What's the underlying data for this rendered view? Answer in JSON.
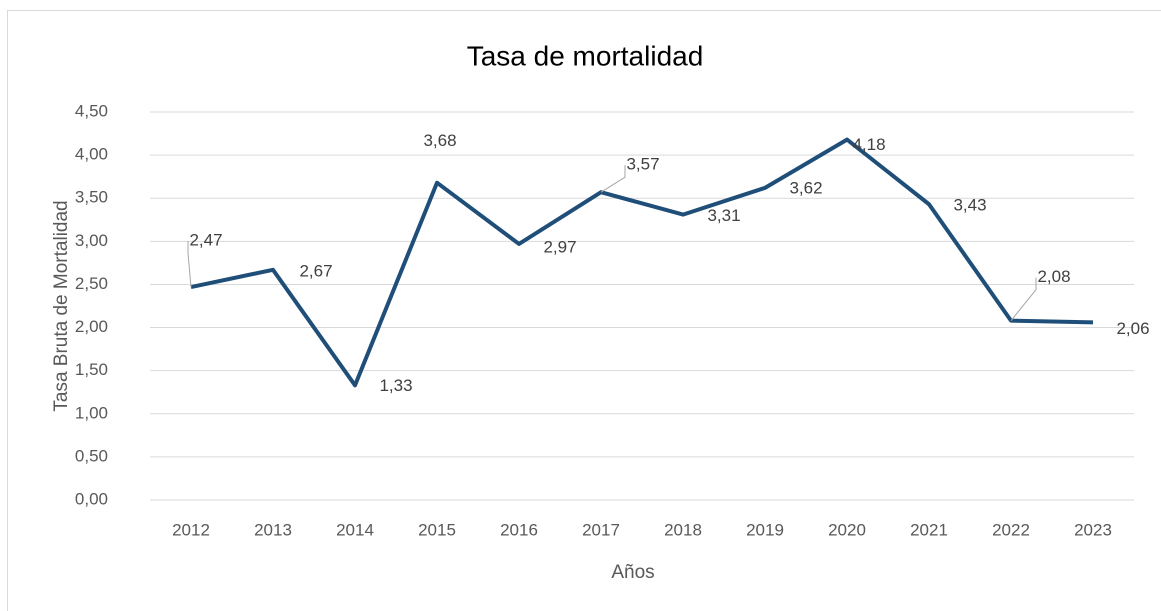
{
  "chart_data": {
    "type": "line",
    "title": "Tasa de mortalidad",
    "x_label": "Años",
    "y_label": "Tasa Bruta de Mortalidad",
    "categories": [
      "2012",
      "2013",
      "2014",
      "2015",
      "2016",
      "2017",
      "2018",
      "2019",
      "2020",
      "2021",
      "2022",
      "2023"
    ],
    "series": [
      {
        "name": "Tasa Bruta de Mortalidad",
        "color": "#1f4e79",
        "values": [
          2.47,
          2.67,
          1.33,
          3.68,
          2.97,
          3.57,
          3.31,
          3.62,
          4.18,
          3.43,
          2.08,
          2.06
        ],
        "value_labels": [
          "2,47",
          "2,67",
          "1,33",
          "3,68",
          "2,97",
          "3,57",
          "3,31",
          "3,62",
          "4,18",
          "3,43",
          "2,08",
          "2,06"
        ]
      }
    ],
    "ylim": [
      0,
      4.5
    ],
    "yticks": [
      {
        "value": 0,
        "label": "0,00"
      },
      {
        "value": 0.5,
        "label": "0,50"
      },
      {
        "value": 1,
        "label": "1,00"
      },
      {
        "value": 1.5,
        "label": "1,50"
      },
      {
        "value": 2,
        "label": "2,00"
      },
      {
        "value": 2.5,
        "label": "2,50"
      },
      {
        "value": 3,
        "label": "3,00"
      },
      {
        "value": 3.5,
        "label": "3,50"
      },
      {
        "value": 4,
        "label": "4,00"
      },
      {
        "value": 4.5,
        "label": "4,50"
      }
    ],
    "grid": true
  }
}
